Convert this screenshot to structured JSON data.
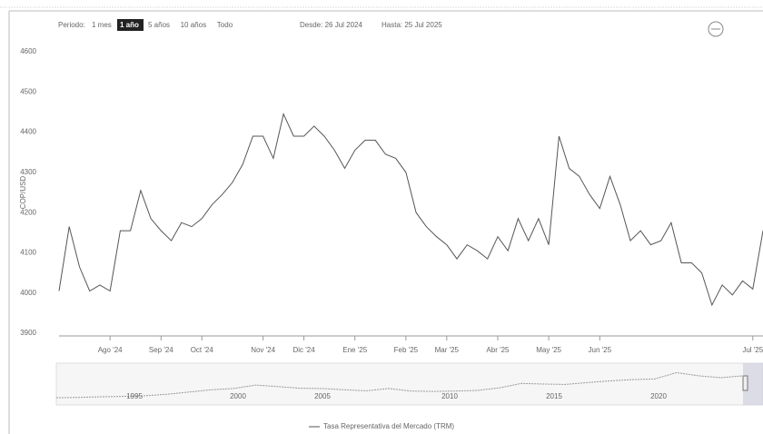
{
  "range_selector": {
    "label": "Periodo:",
    "buttons": [
      "1 mes",
      "1 año",
      "5 años",
      "10 años",
      "Todo"
    ],
    "selected": 1,
    "from": "Desde: 26 Jul 2024",
    "to": "Hasta: 25 Jul 2025"
  },
  "chart_data": {
    "type": "line",
    "y_axis_label": "COP/USD",
    "color": "#555555",
    "grid": false,
    "ylim": [
      3900,
      4600
    ],
    "yticks": [
      3900,
      4000,
      4100,
      4200,
      4300,
      4400,
      4500,
      4600
    ],
    "categories": [
      null,
      null,
      null,
      null,
      null,
      "Ago '24",
      null,
      null,
      null,
      null,
      "Sep '24",
      null,
      null,
      null,
      "Oct '24",
      null,
      null,
      null,
      null,
      null,
      "Nov '24",
      null,
      null,
      null,
      "Dic '24",
      null,
      null,
      null,
      null,
      "Ene '25",
      null,
      null,
      null,
      null,
      "Feb '25",
      null,
      null,
      null,
      "Mar '25",
      null,
      null,
      null,
      null,
      "Abr '25",
      null,
      null,
      null,
      null,
      "May '25",
      null,
      null,
      null,
      null,
      "Jun '25",
      null,
      null,
      null,
      null,
      null,
      null,
      null,
      null,
      null,
      null,
      null,
      null,
      null,
      null,
      "Jul '25",
      null
    ],
    "series": [
      {
        "name": "Tasa Representativa del Mercado (TRM)",
        "color": "#555555",
        "values": [
          4005,
          4165,
          4065,
          4005,
          4020,
          4005,
          4155,
          4155,
          4255,
          4185,
          4155,
          4130,
          4175,
          4165,
          4185,
          4220,
          4245,
          4275,
          4320,
          4390,
          4390,
          4335,
          4445,
          4390,
          4390,
          4415,
          4390,
          4355,
          4310,
          4355,
          4380,
          4380,
          4345,
          4335,
          4300,
          4200,
          4165,
          4140,
          4120,
          4085,
          4120,
          4105,
          4085,
          4140,
          4105,
          4185,
          4130,
          4185,
          4120,
          4390,
          4310,
          4290,
          4245,
          4210,
          4290,
          4220,
          4130,
          4155,
          4120,
          4130,
          4175,
          4075,
          4075,
          4050,
          3970,
          4020,
          3995,
          4030,
          4010,
          4155
        ]
      }
    ]
  },
  "navigator": {
    "labels": [
      "1995",
      "2000",
      "2005",
      "2010",
      "2015",
      "2020"
    ],
    "ylim": [
      0,
      6000
    ],
    "values": [
      850,
      900,
      1000,
      1050,
      1150,
      1400,
      1750,
      2100,
      2300,
      2850,
      2600,
      2350,
      2300,
      2100,
      1950,
      2300,
      1900,
      1850,
      1900,
      2000,
      2400,
      3100,
      3000,
      2950,
      3250,
      3500,
      3700,
      3800,
      4800,
      4300,
      4000,
      4300
    ]
  }
}
